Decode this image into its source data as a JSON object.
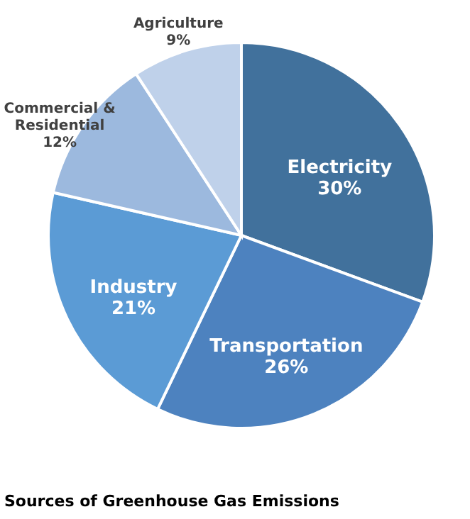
{
  "chart_data": {
    "type": "pie",
    "title": "Sources of Greenhouse Gas Emissions",
    "categories": [
      "Electricity",
      "Transportation",
      "Industry",
      "Commercial & Residential",
      "Agriculture"
    ],
    "values": [
      30,
      26,
      21,
      12,
      9
    ],
    "value_labels": [
      "30%",
      "26%",
      "21%",
      "12%",
      "9%"
    ],
    "colors": [
      "#41719c",
      "#4d82bf",
      "#5b9bd5",
      "#9cb9de",
      "#bfd1ea"
    ]
  }
}
